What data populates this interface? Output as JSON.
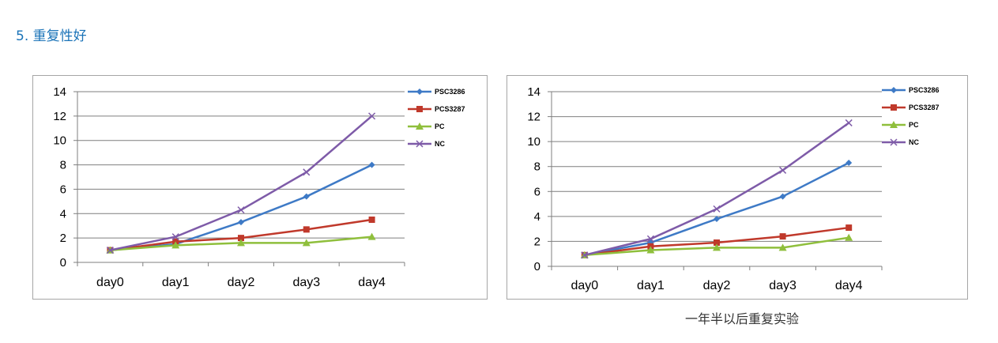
{
  "section": {
    "title": "5. 重复性好"
  },
  "caption": "一年半以后重复实验",
  "colors": {
    "title": "#1a73b8",
    "grid": "#7f7f7f"
  },
  "chart_data": [
    {
      "type": "line",
      "title": "",
      "xlabel": "",
      "ylabel": "",
      "categories": [
        "day0",
        "day1",
        "day2",
        "day3",
        "day4"
      ],
      "ylim": [
        0,
        14
      ],
      "yticks": [
        0,
        2,
        4,
        6,
        8,
        10,
        12,
        14
      ],
      "grid": true,
      "legend_position": "top-right",
      "series": [
        {
          "name": "PSC3286",
          "color": "#3e7ac6",
          "marker": "diamond",
          "values": [
            1.0,
            1.5,
            3.3,
            5.4,
            8.0
          ]
        },
        {
          "name": "PCS3287",
          "color": "#c0392b",
          "marker": "square",
          "values": [
            1.0,
            1.7,
            2.0,
            2.7,
            3.5
          ]
        },
        {
          "name": "PC",
          "color": "#8fbf3c",
          "marker": "triangle",
          "values": [
            1.0,
            1.4,
            1.6,
            1.6,
            2.1
          ]
        },
        {
          "name": "NC",
          "color": "#7e5ba8",
          "marker": "x",
          "values": [
            1.0,
            2.1,
            4.3,
            7.4,
            12.0
          ]
        }
      ]
    },
    {
      "type": "line",
      "title": "",
      "xlabel": "",
      "ylabel": "",
      "categories": [
        "day0",
        "day1",
        "day2",
        "day3",
        "day4"
      ],
      "ylim": [
        0,
        14
      ],
      "yticks": [
        0,
        2,
        4,
        6,
        8,
        10,
        12,
        14
      ],
      "grid": true,
      "legend_position": "top-right",
      "series": [
        {
          "name": "PSC3286",
          "color": "#3e7ac6",
          "marker": "diamond",
          "values": [
            0.9,
            1.9,
            3.8,
            5.6,
            8.3
          ]
        },
        {
          "name": "PCS3287",
          "color": "#c0392b",
          "marker": "square",
          "values": [
            0.9,
            1.6,
            1.9,
            2.4,
            3.1
          ]
        },
        {
          "name": "PC",
          "color": "#8fbf3c",
          "marker": "triangle",
          "values": [
            0.9,
            1.3,
            1.5,
            1.5,
            2.3
          ]
        },
        {
          "name": "NC",
          "color": "#7e5ba8",
          "marker": "x",
          "values": [
            0.9,
            2.2,
            4.6,
            7.7,
            11.5
          ]
        }
      ]
    }
  ]
}
